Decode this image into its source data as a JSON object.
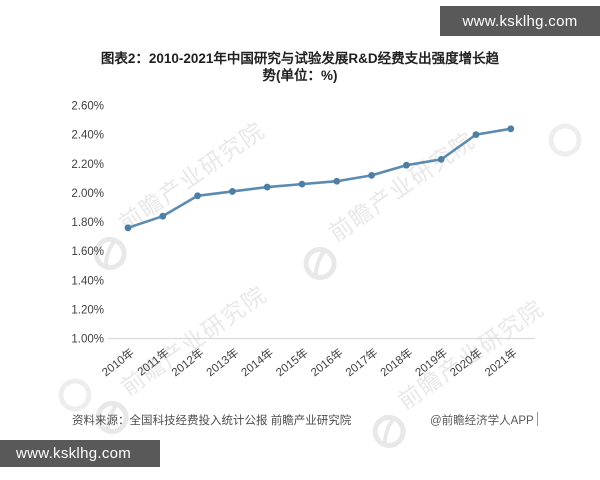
{
  "overlays": {
    "top_bar_text": "www.ksklhg.com",
    "bottom_bar_text": "www.ksklhg.com"
  },
  "title": {
    "line1": "图表2：2010-2021年中国研究与试验发展R&D经费支出强度增长趋",
    "line2": "势(单位：%)"
  },
  "watermark": {
    "text": "前瞻产业研究院"
  },
  "footer": {
    "source": "资料来源：全国科技经费投入统计公报 前瞻产业研究院",
    "credit": "@前瞻经济学人APP"
  },
  "chart_data": {
    "type": "line",
    "title": "图表2：2010-2021年中国研究与试验发展R&D经费支出强度增长趋势(单位：%)",
    "categories": [
      "2010年",
      "2011年",
      "2012年",
      "2013年",
      "2014年",
      "2015年",
      "2016年",
      "2017年",
      "2018年",
      "2019年",
      "2020年",
      "2021年"
    ],
    "series": [
      {
        "name": "中国研究与试验发展R&D经费支出强度",
        "values": [
          1.76,
          1.84,
          1.98,
          2.01,
          2.04,
          2.06,
          2.08,
          2.12,
          2.19,
          2.23,
          2.4,
          2.44
        ]
      }
    ],
    "unit": "%",
    "ylim": [
      1.0,
      2.6
    ],
    "ytick_step": 0.2,
    "ytick_labels": [
      "1.00%",
      "1.20%",
      "1.40%",
      "1.60%",
      "1.80%",
      "2.00%",
      "2.20%",
      "2.40%",
      "2.60%"
    ],
    "grid": false,
    "legend": "none",
    "line_color": "#5b8bb0",
    "marker_color": "#4d7fa5",
    "axis_color": "#d9d9d9",
    "tick_label_color": "#3f3f3f"
  }
}
